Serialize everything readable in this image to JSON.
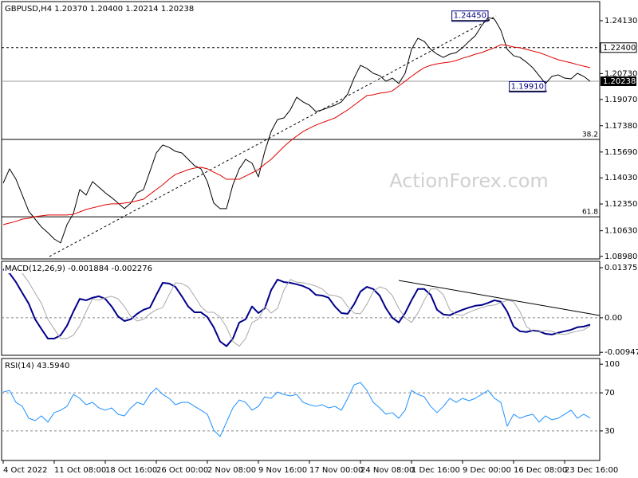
{
  "chart_data": [
    {
      "type": "line",
      "title": "GBPUSD,H4 1.20370 1.20400 1.20214 1.20238",
      "watermark": "ActionForex.com",
      "ylim": [
        1.0882,
        1.2546
      ],
      "yticks": [
        {
          "value": 1.2413,
          "label": "1.24130"
        },
        {
          "value": 1.2073,
          "label": "1.20730"
        },
        {
          "value": 1.1907,
          "label": "1.19070"
        },
        {
          "value": 1.1738,
          "label": "1.17380"
        },
        {
          "value": 1.1569,
          "label": "1.15690"
        },
        {
          "value": 1.1403,
          "label": "1.14030"
        },
        {
          "value": 1.1235,
          "label": "1.12350"
        },
        {
          "value": 1.1063,
          "label": "1.10630"
        },
        {
          "value": 1.0898,
          "label": "1.08980"
        }
      ],
      "series": [
        {
          "color": "#000000",
          "width": 1,
          "values": [
            1.1369,
            1.1461,
            1.1394,
            1.1292,
            1.1189,
            1.1138,
            1.1087,
            1.1051,
            1.101,
            1.0985,
            1.1102,
            1.1174,
            1.1328,
            1.1292,
            1.1379,
            1.1343,
            1.1307,
            1.1276,
            1.1241,
            1.1205,
            1.1241,
            1.1307,
            1.1328,
            1.1445,
            1.1563,
            1.1614,
            1.1599,
            1.1573,
            1.1563,
            1.1522,
            1.1481,
            1.1461,
            1.1379,
            1.1241,
            1.1205,
            1.1205,
            1.1358,
            1.1461,
            1.1522,
            1.1497,
            1.1409,
            1.1573,
            1.1701,
            1.1778,
            1.1788,
            1.184,
            1.1921,
            1.1891,
            1.187,
            1.1829,
            1.184,
            1.1855,
            1.187,
            1.1891,
            1.1942,
            1.2044,
            1.2126,
            1.2106,
            1.2075,
            1.206,
            1.2024,
            1.2044,
            1.2009,
            1.2075,
            1.2229,
            1.23,
            1.228,
            1.2229,
            1.2198,
            1.2177,
            1.2198,
            1.2208,
            1.2239,
            1.228,
            1.2316,
            1.2382,
            1.2433,
            1.2423,
            1.2352,
            1.2229,
            1.2188,
            1.2177,
            1.2147,
            1.2111,
            1.206,
            1.2009,
            1.2055,
            1.2065,
            1.2044,
            1.2039,
            1.2075,
            1.2055,
            1.20238
          ]
        },
        {
          "color": "#e00000",
          "width": 1,
          "values": [
            1.1102,
            1.1113,
            1.1123,
            1.1138,
            1.1143,
            1.1154,
            1.1159,
            1.1164,
            1.1164,
            1.1164,
            1.1164,
            1.1169,
            1.1184,
            1.12,
            1.121,
            1.122,
            1.123,
            1.1236,
            1.1236,
            1.1241,
            1.1246,
            1.1256,
            1.1266,
            1.1297,
            1.1328,
            1.1358,
            1.1394,
            1.1425,
            1.144,
            1.1456,
            1.1466,
            1.1471,
            1.1461,
            1.144,
            1.142,
            1.1394,
            1.1394,
            1.1394,
            1.1415,
            1.1435,
            1.1456,
            1.1491,
            1.1522,
            1.1563,
            1.1604,
            1.164,
            1.1671,
            1.1701,
            1.1722,
            1.1742,
            1.1758,
            1.1773,
            1.1788,
            1.1814,
            1.184,
            1.187,
            1.1901,
            1.1932,
            1.1937,
            1.1947,
            1.1952,
            1.1962,
            1.1993,
            1.2024,
            1.2055,
            1.2085,
            1.2111,
            1.2126,
            1.2136,
            1.2142,
            1.2147,
            1.2157,
            1.2172,
            1.2183,
            1.2198,
            1.2208,
            1.2224,
            1.2239,
            1.2259,
            1.2254,
            1.2244,
            1.2239,
            1.2229,
            1.2218,
            1.2208,
            1.2193,
            1.2177,
            1.2162,
            1.2152,
            1.2142,
            1.2131,
            1.2121,
            1.2111
          ]
        }
      ],
      "levels": [
        {
          "value": 1.224,
          "label": "1.22400",
          "style": "dashed"
        }
      ],
      "price_line": {
        "value": 1.20238,
        "label": "1.20238"
      },
      "fibonacci": [
        {
          "ratio": 38.2,
          "value": 1.165
        },
        {
          "ratio": 61.8,
          "value": 1.1153
        }
      ],
      "annotations": [
        {
          "value": 1.2445,
          "label": "1.24450"
        },
        {
          "value": 1.1991,
          "label": "1.19910"
        }
      ]
    },
    {
      "type": "line",
      "title": "MACD(12,26,9) -0.001884 -0.002276",
      "ylim": [
        -0.0103,
        0.0155
      ],
      "yticks": [
        0.01375,
        {
          "value": 0,
          "label": "0.00"
        },
        -0.00947
      ],
      "levels": [
        0
      ],
      "series": [
        {
          "color": "#00008b",
          "width": 2,
          "values": [
            0.0133,
            0.0122,
            0.0098,
            0.0068,
            0.0039,
            -0.0004,
            -0.0031,
            -0.0057,
            -0.0057,
            -0.0048,
            -0.0022,
            0.0017,
            0.0052,
            0.0048,
            0.0055,
            0.0059,
            0.0052,
            0.0031,
            0.0004,
            -0.0009,
            -0.0004,
            0.0011,
            0.0022,
            0.0028,
            0.0063,
            0.0096,
            0.0094,
            0.0085,
            0.0059,
            0.0031,
            0.0015,
            0.0015,
            0.0002,
            -0.0026,
            -0.0065,
            -0.0078,
            -0.0057,
            -0.0013,
            -0.0004,
            0.0031,
            0.0013,
            0.0026,
            0.0076,
            0.0105,
            0.0098,
            0.0096,
            0.0092,
            0.0087,
            0.0079,
            0.0063,
            0.0061,
            0.0055,
            0.0031,
            0.0013,
            0.0011,
            0.0037,
            0.0072,
            0.0085,
            0.0079,
            0.0061,
            0.0026,
            0,
            -0.0013,
            0.0013,
            0.0048,
            0.0079,
            0.0079,
            0.0063,
            0.0022,
            0.0009,
            0.0007,
            0.0015,
            0.0022,
            0.0028,
            0.0033,
            0.0035,
            0.0041,
            0.0048,
            0.0044,
            0.0017,
            -0.0024,
            -0.0037,
            -0.0039,
            -0.0035,
            -0.0037,
            -0.0044,
            -0.0046,
            -0.0041,
            -0.0037,
            -0.0033,
            -0.0026,
            -0.0024,
            -0.001884
          ]
        },
        {
          "color": "#a8a8a8",
          "width": 1,
          "values": [
            0.0135,
            0.0134,
            0.0133,
            0.0122,
            0.0098,
            0.0068,
            0.0039,
            -0.0004,
            -0.0031,
            -0.0057,
            -0.0057,
            -0.0048,
            -0.0022,
            0.0017,
            0.0052,
            0.0048,
            0.0055,
            0.0059,
            0.0052,
            0.0031,
            0.0004,
            -0.0009,
            -0.0004,
            0.0011,
            0.0022,
            0.0028,
            0.0063,
            0.0096,
            0.0094,
            0.0085,
            0.0059,
            0.0031,
            0.0015,
            0.0015,
            0.0002,
            -0.0026,
            -0.0065,
            -0.0078,
            -0.0057,
            -0.0013,
            -0.0004,
            0.0031,
            0.0013,
            0.0026,
            0.0076,
            0.0105,
            0.0098,
            0.0096,
            0.0092,
            0.0087,
            0.0079,
            0.0063,
            0.0061,
            0.0055,
            0.0031,
            0.0013,
            0.0011,
            0.0037,
            0.0072,
            0.0085,
            0.0079,
            0.0061,
            0.0026,
            0,
            -0.0013,
            0.0013,
            0.0048,
            0.0079,
            0.0079,
            0.0063,
            0.0022,
            0.0009,
            0.0007,
            0.0015,
            0.0022,
            0.0028,
            0.0033,
            0.0035,
            0.0041,
            0.0048,
            0.0044,
            0.0017,
            -0.0024,
            -0.0037,
            -0.0039,
            -0.0035,
            -0.0037,
            -0.0044,
            -0.0046,
            -0.0041,
            -0.0037,
            -0.0033,
            -0.002276
          ]
        }
      ]
    },
    {
      "type": "line",
      "title": "RSI(14) 43.5940",
      "ylim": [
        -1,
        106
      ],
      "yticks": [
        100,
        70,
        30
      ],
      "levels": [
        70,
        30
      ],
      "categories": [
        "4 Oct 2022",
        null,
        null,
        null,
        null,
        null,
        null,
        null,
        "11 Oct 08:00",
        null,
        null,
        null,
        null,
        null,
        null,
        null,
        "18 Oct 16:00",
        null,
        null,
        null,
        null,
        null,
        null,
        null,
        "26 Oct 00:00",
        null,
        null,
        null,
        null,
        null,
        null,
        null,
        "2 Nov 08:00",
        null,
        null,
        null,
        null,
        null,
        null,
        null,
        "9 Nov 16:00",
        null,
        null,
        null,
        null,
        null,
        null,
        null,
        "17 Nov 00:00",
        null,
        null,
        null,
        null,
        null,
        null,
        null,
        "24 Nov 08:00",
        null,
        null,
        null,
        null,
        null,
        null,
        null,
        "1 Dec 16:00",
        null,
        null,
        null,
        null,
        null,
        null,
        null,
        "9 Dec 00:00",
        null,
        null,
        null,
        null,
        null,
        null,
        null,
        "16 Dec 08:00",
        null,
        null,
        null,
        null,
        null,
        null,
        null,
        "23 Dec 16:00",
        null,
        null,
        null,
        null
      ],
      "series": [
        {
          "color": "#1e90ff",
          "width": 1,
          "values": [
            70.8,
            72.5,
            60.0,
            55.8,
            43.3,
            40.8,
            45.8,
            39.2,
            49.2,
            51.7,
            55.8,
            68.3,
            64.2,
            57.5,
            60.0,
            54.2,
            51.7,
            54.2,
            47.5,
            45.8,
            54.2,
            60.0,
            57.5,
            68.3,
            75.0,
            68.3,
            64.2,
            57.5,
            60.0,
            60.0,
            55.8,
            51.7,
            47.5,
            30.8,
            24.2,
            39.2,
            54.2,
            62.5,
            60.0,
            51.7,
            55.8,
            65.8,
            64.2,
            70.8,
            68.3,
            66.7,
            68.3,
            60.0,
            57.5,
            55.8,
            57.5,
            54.2,
            55.8,
            51.7,
            64.2,
            78.3,
            80.8,
            72.5,
            60.0,
            54.2,
            47.5,
            49.2,
            43.3,
            51.7,
            72.5,
            68.3,
            65.8,
            55.8,
            49.2,
            55.8,
            64.2,
            60.0,
            64.2,
            61.7,
            64.2,
            68.3,
            72.5,
            64.2,
            60.0,
            35.0,
            47.5,
            43.3,
            45.8,
            47.5,
            39.2,
            45.8,
            41.7,
            43.3,
            47.5,
            51.7,
            43.3,
            47.5,
            43.594
          ]
        }
      ]
    }
  ]
}
